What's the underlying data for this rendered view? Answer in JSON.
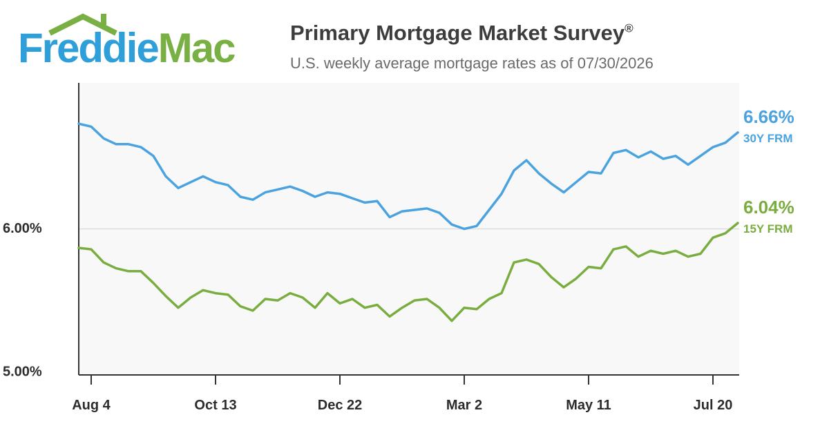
{
  "logo": {
    "word1": "Freddie",
    "word2": "Mac"
  },
  "header": {
    "title": "Primary Mortgage Market Survey",
    "title_mark": "®",
    "subtitle": "U.S. weekly average mortgage rates as of 07/30/2026"
  },
  "colors": {
    "frm30": "#4aa3df",
    "frm15": "#7aad3f",
    "plot_bg": "#f8f8f8",
    "axis": "#333333",
    "grid": "#dddddd"
  },
  "chart_data": {
    "type": "line",
    "title": "Primary Mortgage Market Survey",
    "subtitle": "U.S. weekly average mortgage rates as of 07/30/2026",
    "xlabel": "",
    "ylabel": "",
    "ylim": [
      5.0,
      7.0
    ],
    "y_ticks": [
      {
        "value": 6.0,
        "label": "6.00%"
      },
      {
        "value": 5.0,
        "label": "5.00%"
      }
    ],
    "x_ticks": [
      "Aug 4",
      "Oct 13",
      "Dec 22",
      "Mar 2",
      "May 11",
      "Jul 20"
    ],
    "x_tick_index": [
      1,
      11,
      21,
      31,
      41,
      51
    ],
    "grid": "horizontal line at 6.00%",
    "legend": "end-of-line labels on the right",
    "series": [
      {
        "name": "30Y FRM",
        "end_label": "6.66%",
        "values": [
          6.72,
          6.7,
          6.62,
          6.58,
          6.58,
          6.56,
          6.5,
          6.36,
          6.28,
          6.32,
          6.36,
          6.32,
          6.3,
          6.22,
          6.2,
          6.25,
          6.27,
          6.29,
          6.26,
          6.22,
          6.25,
          6.24,
          6.21,
          6.18,
          6.19,
          6.08,
          6.12,
          6.13,
          6.14,
          6.11,
          6.03,
          6.0,
          6.02,
          6.13,
          6.24,
          6.4,
          6.47,
          6.38,
          6.31,
          6.25,
          6.32,
          6.39,
          6.38,
          6.52,
          6.54,
          6.49,
          6.53,
          6.48,
          6.5,
          6.44,
          6.5,
          6.56,
          6.59,
          6.66
        ]
      },
      {
        "name": "15Y FRM",
        "end_label": "6.04%",
        "values": [
          5.87,
          5.86,
          5.77,
          5.73,
          5.71,
          5.71,
          5.63,
          5.54,
          5.46,
          5.53,
          5.58,
          5.56,
          5.55,
          5.47,
          5.44,
          5.52,
          5.51,
          5.56,
          5.53,
          5.46,
          5.56,
          5.49,
          5.52,
          5.46,
          5.48,
          5.4,
          5.46,
          5.51,
          5.52,
          5.46,
          5.37,
          5.46,
          5.45,
          5.52,
          5.56,
          5.77,
          5.79,
          5.76,
          5.67,
          5.6,
          5.66,
          5.74,
          5.73,
          5.86,
          5.88,
          5.81,
          5.85,
          5.83,
          5.85,
          5.81,
          5.83,
          5.94,
          5.97,
          6.04
        ]
      }
    ]
  }
}
